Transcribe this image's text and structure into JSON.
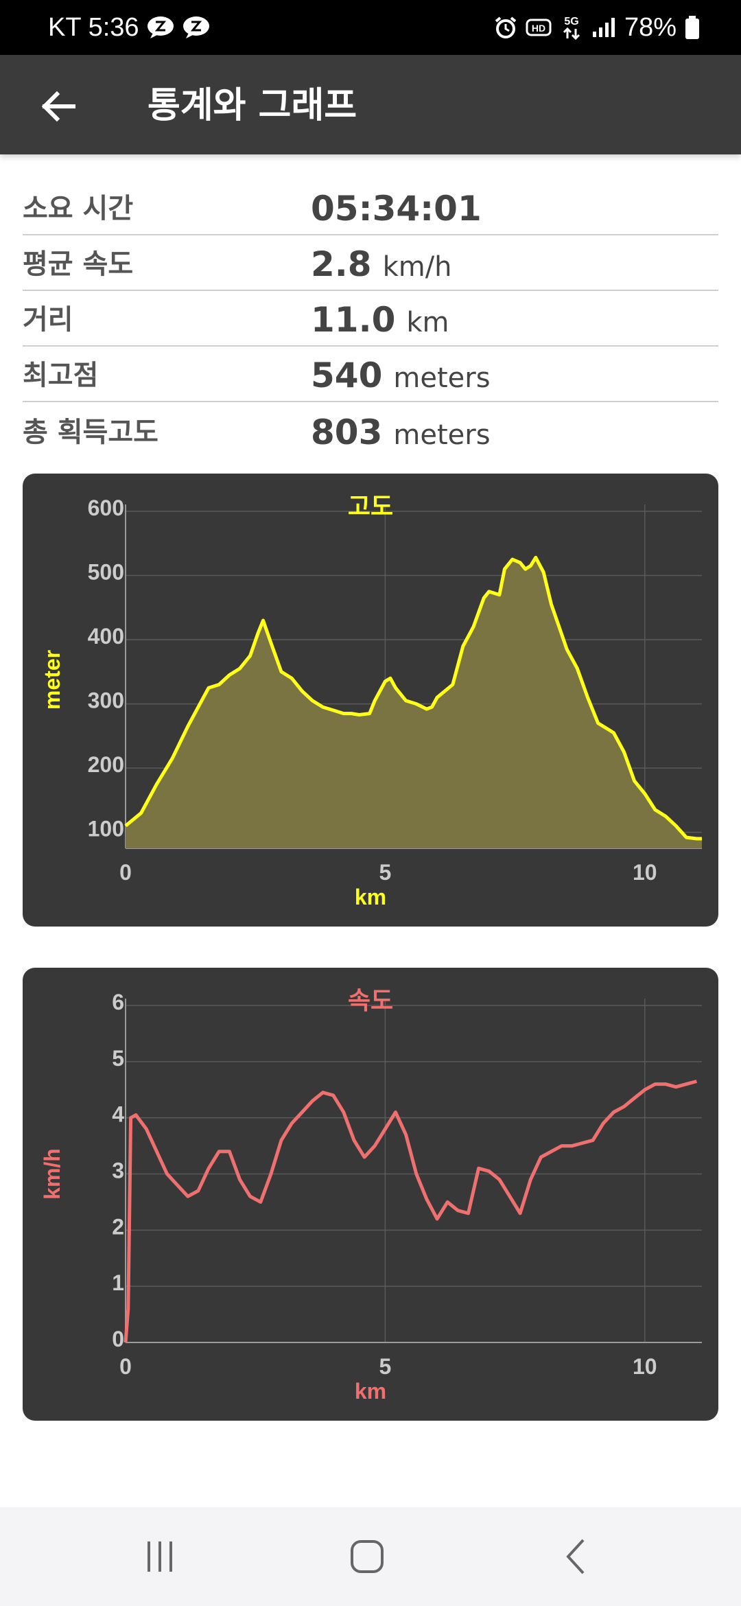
{
  "status_bar": {
    "carrier": "KT",
    "time": "5:36",
    "battery": "78%",
    "icons": [
      "talk-icon",
      "talk-icon",
      "alarm-icon",
      "hd-icon",
      "5g-icon",
      "signal-icon",
      "battery-icon"
    ]
  },
  "app_bar": {
    "back_icon": "arrow-back-icon",
    "title": "통계와 그래프"
  },
  "stats": [
    {
      "label": "소요 시간",
      "value": "05:34:01",
      "unit": ""
    },
    {
      "label": "평균 속도",
      "value": "2.8",
      "unit": "km/h"
    },
    {
      "label": "거리",
      "value": "11.0",
      "unit": "km"
    },
    {
      "label": "최고점",
      "value": "540",
      "unit": "meters"
    },
    {
      "label": "총 획득고도",
      "value": "803",
      "unit": "meters"
    }
  ],
  "chart_data": [
    {
      "type": "area",
      "title": "고도",
      "xlabel": "km",
      "ylabel": "meter",
      "xlim": [
        0,
        11.1
      ],
      "ylim": [
        75,
        600
      ],
      "xticks": [
        0,
        5,
        10
      ],
      "yticks": [
        100,
        200,
        300,
        400,
        500,
        600
      ],
      "grid": true,
      "colors": {
        "line": "#ffff1a",
        "fill": "#7a7442",
        "title": "#ffff1a",
        "tick": "#cccccc"
      },
      "series": [
        {
          "x": [
            0,
            0.3,
            0.6,
            0.9,
            1.2,
            1.5,
            1.6,
            1.8,
            2.0,
            2.2,
            2.4,
            2.55,
            2.65,
            2.8,
            3.0,
            3.2,
            3.4,
            3.6,
            3.8,
            4.0,
            4.2,
            4.35,
            4.5,
            4.7,
            4.8,
            5.0,
            5.1,
            5.2,
            5.4,
            5.6,
            5.8,
            5.9,
            6.0,
            6.3,
            6.5,
            6.7,
            6.9,
            7.0,
            7.2,
            7.3,
            7.45,
            7.6,
            7.7,
            7.8,
            7.9,
            8.05,
            8.2,
            8.35,
            8.5,
            8.7,
            8.9,
            9.1,
            9.4,
            9.6,
            9.8,
            10.0,
            10.2,
            10.4,
            10.6,
            10.8,
            11.0,
            11.1
          ],
          "y": [
            110,
            130,
            175,
            215,
            265,
            310,
            325,
            330,
            345,
            355,
            375,
            410,
            430,
            395,
            350,
            340,
            320,
            305,
            295,
            290,
            285,
            285,
            283,
            285,
            305,
            335,
            340,
            325,
            305,
            300,
            292,
            295,
            310,
            330,
            390,
            420,
            465,
            475,
            470,
            510,
            525,
            520,
            510,
            515,
            528,
            505,
            455,
            420,
            385,
            355,
            310,
            270,
            255,
            225,
            180,
            160,
            135,
            125,
            110,
            92,
            90,
            90
          ]
        }
      ]
    },
    {
      "type": "line",
      "title": "속도",
      "xlabel": "km",
      "ylabel": "km/h",
      "xlim": [
        0,
        11.1
      ],
      "ylim": [
        0,
        6
      ],
      "xticks": [
        0,
        5,
        10
      ],
      "yticks": [
        0,
        1,
        2,
        3,
        4,
        5,
        6
      ],
      "grid": true,
      "colors": {
        "line": "#f07070",
        "title": "#f07070",
        "tick": "#cccccc"
      },
      "series": [
        {
          "x": [
            0,
            0.05,
            0.1,
            0.2,
            0.4,
            0.6,
            0.8,
            1.0,
            1.2,
            1.4,
            1.6,
            1.8,
            2.0,
            2.2,
            2.4,
            2.6,
            2.8,
            3.0,
            3.2,
            3.4,
            3.6,
            3.8,
            4.0,
            4.2,
            4.4,
            4.6,
            4.8,
            5.0,
            5.2,
            5.4,
            5.6,
            5.8,
            6.0,
            6.2,
            6.4,
            6.6,
            6.8,
            7.0,
            7.2,
            7.4,
            7.6,
            7.8,
            8.0,
            8.2,
            8.4,
            8.6,
            8.8,
            9.0,
            9.2,
            9.4,
            9.6,
            9.8,
            10.0,
            10.2,
            10.4,
            10.6,
            10.8,
            11.0
          ],
          "y": [
            0,
            0.6,
            4.0,
            4.05,
            3.8,
            3.4,
            3.0,
            2.8,
            2.6,
            2.7,
            3.1,
            3.4,
            3.4,
            2.9,
            2.6,
            2.5,
            3.0,
            3.6,
            3.9,
            4.1,
            4.3,
            4.45,
            4.4,
            4.1,
            3.6,
            3.3,
            3.5,
            3.8,
            4.1,
            3.7,
            3.0,
            2.55,
            2.2,
            2.5,
            2.35,
            2.3,
            3.1,
            3.05,
            2.9,
            2.6,
            2.3,
            2.9,
            3.3,
            3.4,
            3.5,
            3.5,
            3.55,
            3.6,
            3.9,
            4.1,
            4.2,
            4.35,
            4.5,
            4.6,
            4.6,
            4.55,
            4.6,
            4.65
          ]
        }
      ]
    }
  ],
  "nav_bar": {
    "icons": [
      "recents-icon",
      "home-icon",
      "back-nav-icon"
    ]
  }
}
